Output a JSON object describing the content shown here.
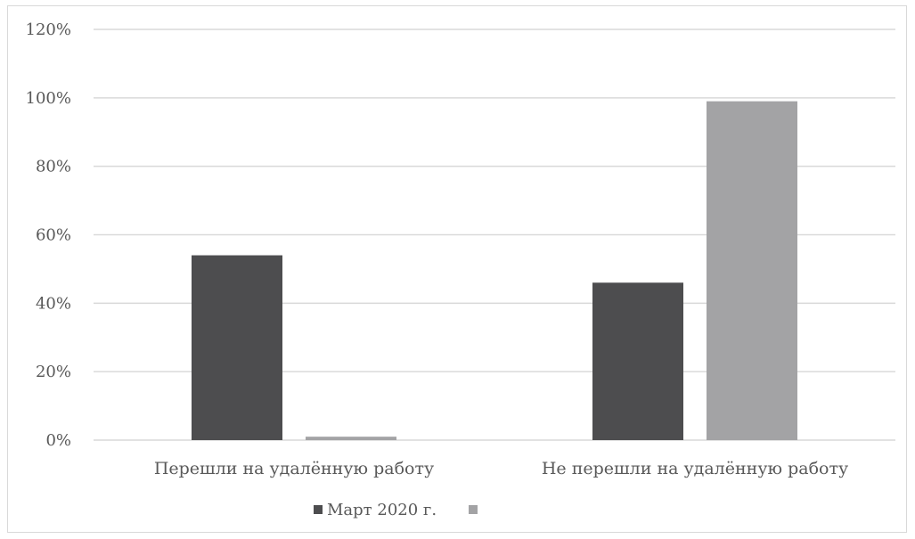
{
  "chart_data": {
    "type": "bar",
    "title": "",
    "xlabel": "",
    "ylabel": "",
    "categories": [
      "Перешли на удалённую работу",
      "Не перешли на удалённую работу"
    ],
    "series": [
      {
        "name": "Март 2020 г.",
        "values": [
          54,
          46
        ],
        "color": "#4d4d4f"
      },
      {
        "name": "",
        "values": [
          1,
          99
        ],
        "color": "#a3a3a5"
      }
    ],
    "ylim": [
      0,
      120
    ],
    "yticks": [
      0,
      20,
      40,
      60,
      80,
      100,
      120
    ],
    "ytick_labels": [
      "0%",
      "20%",
      "40%",
      "60%",
      "80%",
      "100%",
      "120%"
    ],
    "grid": true,
    "legend": "bottom-center",
    "colors": {
      "gridline": "#d9d9d9",
      "text": "#595959"
    }
  }
}
